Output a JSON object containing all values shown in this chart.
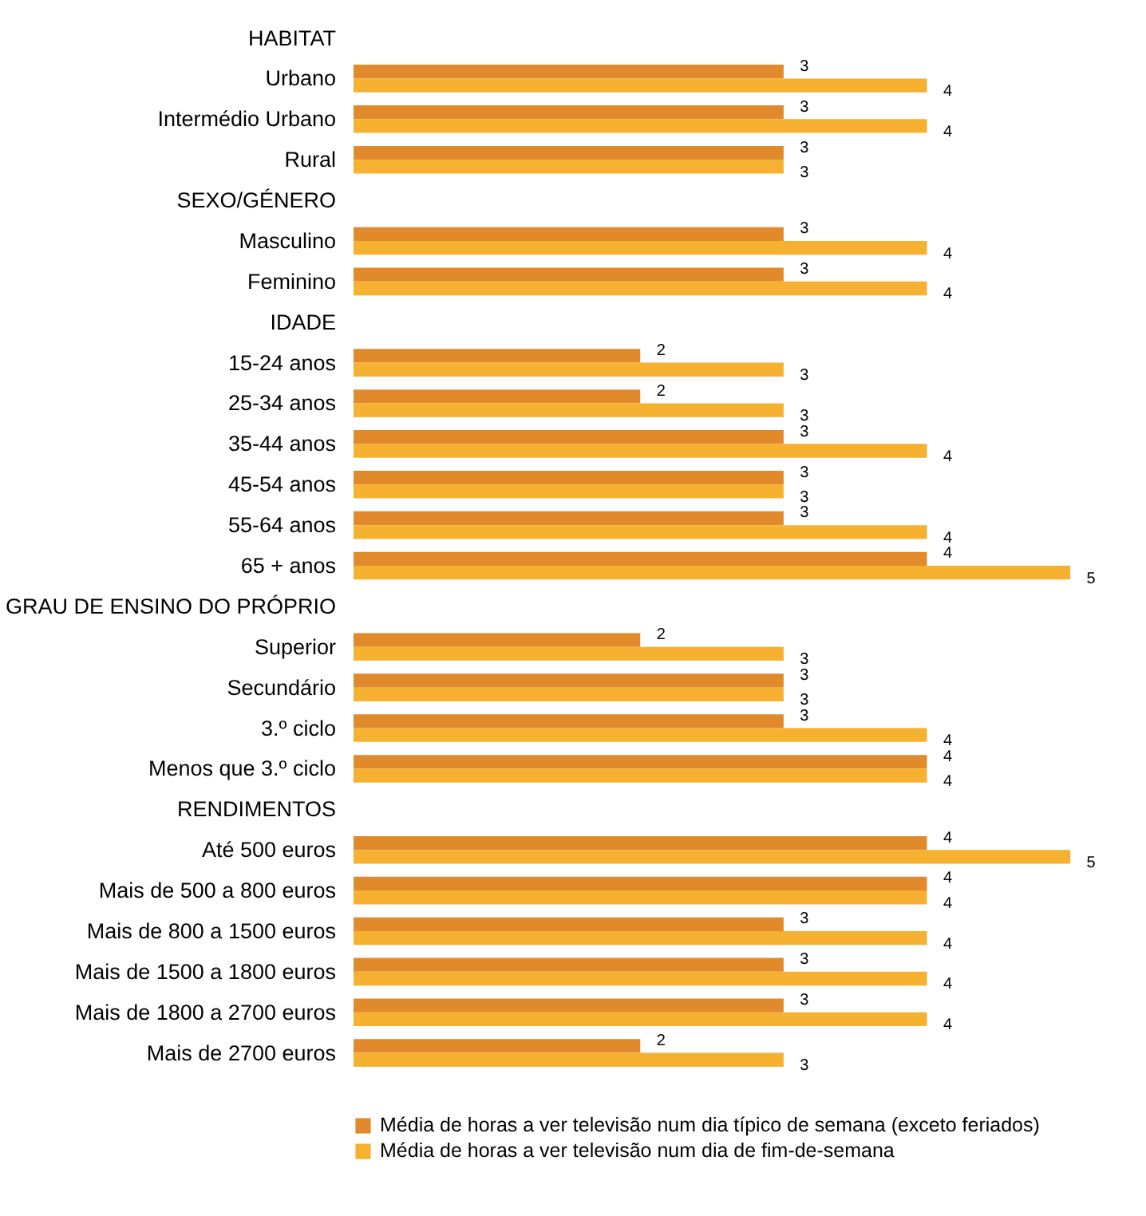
{
  "chart_data": {
    "type": "bar",
    "orientation": "horizontal",
    "data_labels": true,
    "legend": "bottom",
    "categories": [
      "HABITAT",
      "Urbano",
      "Intermédio Urbano",
      "Rural",
      "SEXO/GÉNERO",
      "Masculino",
      "Feminino",
      "IDADE",
      "15-24 anos",
      "25-34 anos",
      "35-44 anos",
      "45-54 anos",
      "55-64 anos",
      "65 + anos",
      "GRAU DE ENSINO DO PRÓPRIO",
      "Superior",
      "Secundário",
      "3.º ciclo",
      "Menos que 3.º ciclo",
      "RENDIMENTOS",
      "Até 500 euros",
      "Mais de 500 a 800 euros",
      "Mais de 800 a 1500 euros",
      "Mais de 1500 a 1800 euros",
      "Mais de 1800 a 2700 euros",
      "Mais de 2700 euros"
    ],
    "series": [
      {
        "name": "Média de horas a ver televisão num dia típico de semana (exceto feriados)",
        "color": "#e08a2c",
        "values": [
          null,
          3,
          3,
          3,
          null,
          3,
          3,
          null,
          2,
          2,
          3,
          3,
          3,
          4,
          null,
          2,
          3,
          3,
          4,
          null,
          4,
          4,
          3,
          3,
          3,
          2
        ]
      },
      {
        "name": "Média de horas a ver televisão num dia de fim-de-semana",
        "color": "#f5b12f",
        "values": [
          null,
          4,
          4,
          3,
          null,
          4,
          4,
          null,
          3,
          3,
          4,
          3,
          4,
          5,
          null,
          3,
          3,
          4,
          4,
          null,
          5,
          4,
          4,
          4,
          4,
          3
        ]
      }
    ]
  }
}
